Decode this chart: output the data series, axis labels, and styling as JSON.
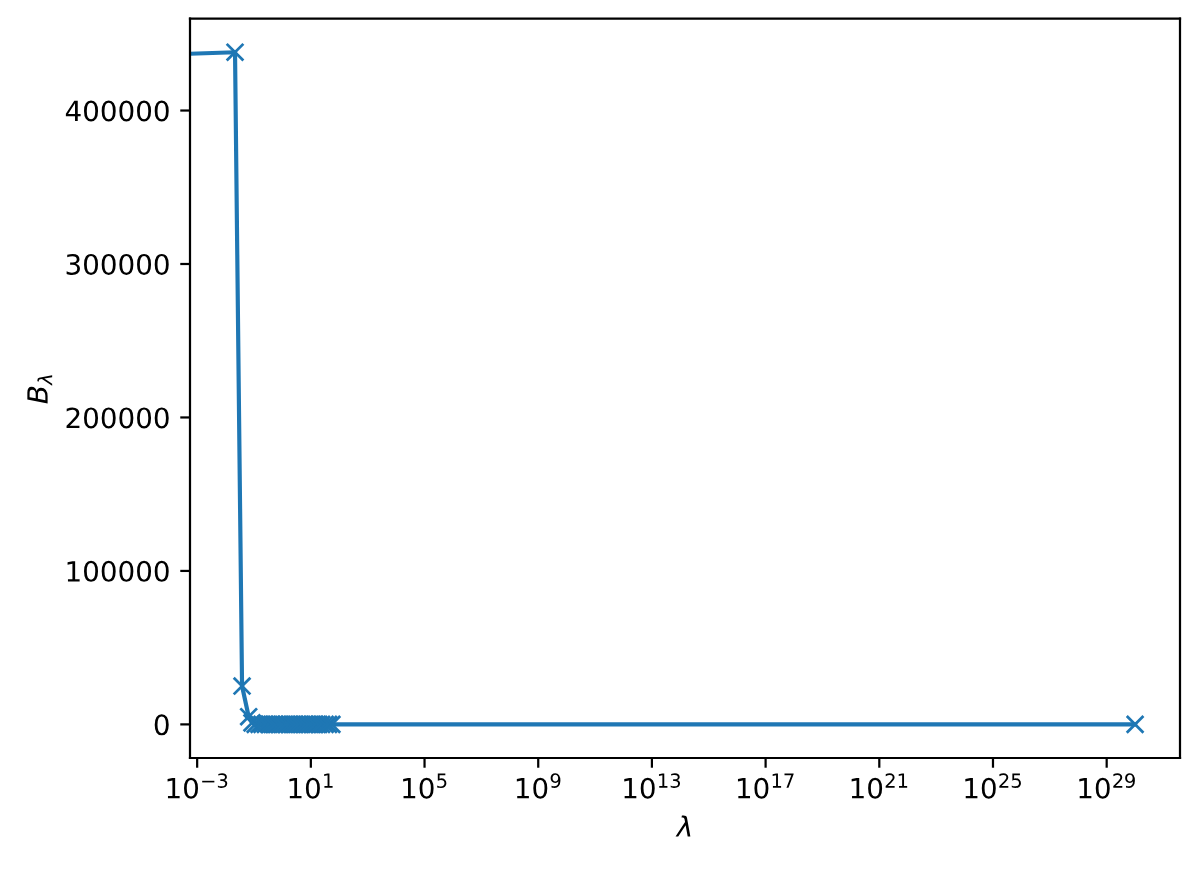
{
  "chart_data": {
    "type": "line",
    "xlabel": "λ",
    "ylabel": "B$_{λ}$",
    "x": [
      0.00056,
      0.0215,
      0.038,
      0.065,
      0.085,
      0.11,
      0.15,
      0.19,
      0.25,
      0.33,
      0.43,
      0.56,
      0.74,
      0.96,
      1.3,
      1.7,
      2.2,
      2.8,
      3.7,
      4.8,
      6.3,
      8.3,
      11,
      14,
      19,
      24,
      32,
      42,
      55,
      1e+30
    ],
    "series": [
      {
        "color": "#1f77b4",
        "values": [
          437000,
          438000,
          25000,
          5000,
          1000,
          0,
          0,
          0,
          0,
          0,
          0,
          0,
          0,
          0,
          0,
          0,
          0,
          0,
          0,
          0,
          0,
          0,
          0,
          0,
          0,
          0,
          0,
          0,
          0,
          0
        ]
      }
    ],
    "log": "x",
    "xlim": [
      0.00056,
      3.8e+31
    ],
    "xticks": [
      {
        "value": 0.001,
        "label": "10$^{−3}$"
      },
      {
        "value": 10.0,
        "label": "10$^{1}$"
      },
      {
        "value": 100000.0,
        "label": "10$^{5}$"
      },
      {
        "value": 1000000000.0,
        "label": "10$^{9}$"
      },
      {
        "value": 10000000000000.0,
        "label": "10$^{13}$"
      },
      {
        "value": 1e+17,
        "label": "10$^{17}$"
      },
      {
        "value": 1e+21,
        "label": "10$^{21}$"
      },
      {
        "value": 1e+25,
        "label": "10$^{25}$"
      },
      {
        "value": 1e+29,
        "label": "10$^{29}$"
      }
    ],
    "ylim": [
      -21900,
      459900
    ],
    "yticks": [
      0,
      100000,
      200000,
      300000,
      400000
    ],
    "marker": "cross",
    "line_style": "solid"
  }
}
